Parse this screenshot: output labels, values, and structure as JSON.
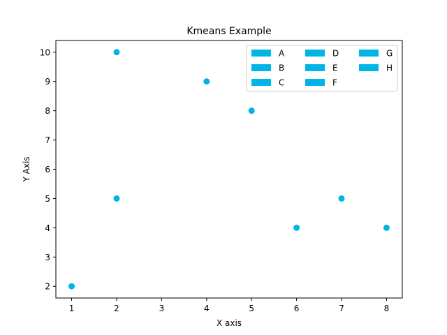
{
  "chart_data": {
    "type": "scatter",
    "title": "Kmeans Example",
    "xlabel": "X axis",
    "ylabel": "Y Axis",
    "xlim": [
      0.65,
      8.35
    ],
    "ylim": [
      1.6,
      10.4
    ],
    "xticks": [
      1,
      2,
      3,
      4,
      5,
      6,
      7,
      8
    ],
    "yticks": [
      2,
      3,
      4,
      5,
      6,
      7,
      8,
      9,
      10
    ],
    "grid": false,
    "legend_position": "top-right",
    "legend_columns": 3,
    "color": "#00b4e6",
    "legend": [
      "A",
      "B",
      "C",
      "D",
      "E",
      "F",
      "G",
      "H"
    ],
    "points": [
      {
        "label": "A",
        "x": 2,
        "y": 10
      },
      {
        "label": "B",
        "x": 2,
        "y": 5
      },
      {
        "label": "C",
        "x": 8,
        "y": 4
      },
      {
        "label": "D",
        "x": 5,
        "y": 8
      },
      {
        "label": "E",
        "x": 7,
        "y": 5
      },
      {
        "label": "F",
        "x": 6,
        "y": 4
      },
      {
        "label": "G",
        "x": 1,
        "y": 2
      },
      {
        "label": "H",
        "x": 4,
        "y": 9
      }
    ]
  }
}
